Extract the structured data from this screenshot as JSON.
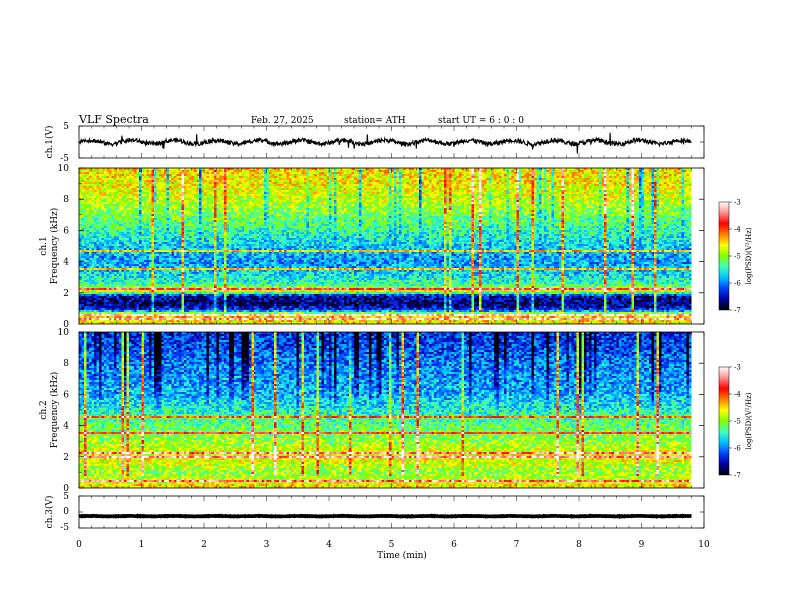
{
  "header": {
    "title": "VLF  Spectra",
    "date": "Feb. 27, 2025",
    "station": "station= ATH",
    "start": "start  UT  =    6  : 0   : 0"
  },
  "chart_data": {
    "type": "heatmap",
    "xlabel": "Time  (min)",
    "xlim": [
      0,
      10
    ],
    "x_ticks": [
      "0",
      "1",
      "2",
      "3",
      "4",
      "5",
      "6",
      "7",
      "8",
      "9",
      "10"
    ],
    "data_end_min": 9.8,
    "panels": [
      {
        "id": "ch1v",
        "type": "line",
        "ylabel": "ch.1(V)",
        "ylim": [
          -5,
          5
        ],
        "y_ticks": [
          "5",
          "-5"
        ],
        "baseline_v": 0.0,
        "noise_v": 1.4
      },
      {
        "id": "ch1spec",
        "type": "heatmap",
        "ylabel_line1": "ch.1",
        "ylabel_line2": "Frequency  (kHz)",
        "ylim": [
          0,
          10
        ],
        "y_ticks": [
          "0",
          "2",
          "4",
          "6",
          "8",
          "10"
        ],
        "zlim": [
          -7,
          -3
        ],
        "colorbar_label": "log(PSD)(V²/Hz)",
        "colorbar_ticks": [
          "-3",
          "-4",
          "-5",
          "-6",
          "-7"
        ],
        "band_profile": [
          {
            "f": 0.0,
            "v": -4.6
          },
          {
            "f": 0.6,
            "v": -4.4
          },
          {
            "f": 0.9,
            "v": -6.3
          },
          {
            "f": 1.3,
            "v": -6.7
          },
          {
            "f": 1.8,
            "v": -6.5
          },
          {
            "f": 2.1,
            "v": -4.7
          },
          {
            "f": 2.6,
            "v": -5.4
          },
          {
            "f": 3.3,
            "v": -5.7
          },
          {
            "f": 4.0,
            "v": -5.9
          },
          {
            "f": 5.0,
            "v": -5.7
          },
          {
            "f": 6.0,
            "v": -5.4
          },
          {
            "f": 7.0,
            "v": -5.1
          },
          {
            "f": 8.0,
            "v": -4.8
          },
          {
            "f": 9.0,
            "v": -4.6
          },
          {
            "f": 10.0,
            "v": -4.5
          }
        ],
        "lines_khz": [
          0.3,
          0.55,
          2.2,
          3.5,
          4.7
        ]
      },
      {
        "id": "ch2spec",
        "type": "heatmap",
        "ylabel_line1": "ch.2",
        "ylabel_line2": "Frequency  (kHz)",
        "ylim": [
          0,
          10
        ],
        "y_ticks": [
          "0",
          "2",
          "4",
          "6",
          "8",
          "10"
        ],
        "zlim": [
          -7,
          -3
        ],
        "colorbar_label": "log(PSD)(V²/Hz)",
        "colorbar_ticks": [
          "-3",
          "-4",
          "-5",
          "-6",
          "-7"
        ],
        "band_profile": [
          {
            "f": 0.0,
            "v": -4.5
          },
          {
            "f": 1.0,
            "v": -5.0
          },
          {
            "f": 2.0,
            "v": -4.6
          },
          {
            "f": 3.0,
            "v": -5.0
          },
          {
            "f": 4.0,
            "v": -5.2
          },
          {
            "f": 5.0,
            "v": -5.5
          },
          {
            "f": 6.0,
            "v": -5.8
          },
          {
            "f": 7.0,
            "v": -5.9
          },
          {
            "f": 8.0,
            "v": -6.0
          },
          {
            "f": 9.0,
            "v": -6.2
          },
          {
            "f": 10.0,
            "v": -6.3
          }
        ],
        "lines_khz": [
          0.4,
          2.0,
          2.2,
          3.5,
          4.5
        ]
      },
      {
        "id": "ch3v",
        "type": "line",
        "ylabel": "ch.3(V)",
        "ylim": [
          -5,
          5
        ],
        "y_ticks": [
          "5",
          "0",
          "-5"
        ],
        "baseline_v": -1.3,
        "noise_v": 0.15
      }
    ],
    "colorscale": [
      "#000000",
      "#0000a0",
      "#0040ff",
      "#00c0ff",
      "#40ffc0",
      "#80ff00",
      "#ffff00",
      "#ff8000",
      "#ff0000",
      "#ff9090",
      "#ffffff"
    ]
  }
}
